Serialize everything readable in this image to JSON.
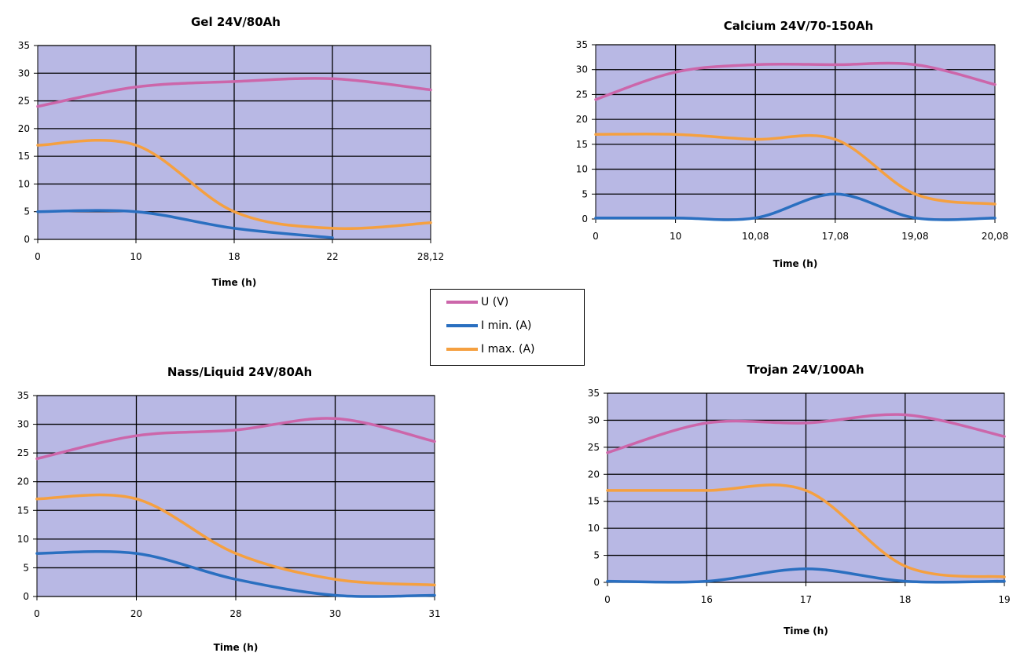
{
  "colors": {
    "u": "#cc66aa",
    "imin": "#2a6fc0",
    "imax": "#f5a040",
    "plot_bg": "#b8b8e4"
  },
  "legend": [
    {
      "key": "u",
      "label": "U (V)"
    },
    {
      "key": "imin",
      "label": "I min. (A)"
    },
    {
      "key": "imax",
      "label": "I max. (A)"
    }
  ],
  "chart_data": [
    {
      "type": "line",
      "title": "Gel 24V/80Ah",
      "xlabel": "Time (h)",
      "categories": [
        "0",
        "10",
        "18",
        "22",
        "28,12"
      ],
      "ylim": [
        0,
        35
      ],
      "yticks": [
        0,
        5,
        10,
        15,
        20,
        25,
        30,
        35
      ],
      "grid": true,
      "series": [
        {
          "key": "u",
          "name": "U (V)",
          "values": [
            24,
            27.5,
            28.5,
            29,
            27
          ]
        },
        {
          "key": "imin",
          "name": "I min. (A)",
          "values": [
            5,
            5,
            2,
            0.3,
            null
          ]
        },
        {
          "key": "imax",
          "name": "I max. (A)",
          "values": [
            17,
            17,
            5,
            2,
            3
          ]
        }
      ]
    },
    {
      "type": "line",
      "title": "Calcium 24V/70-150Ah",
      "xlabel": "Time (h)",
      "categories": [
        "0",
        "10",
        "10,08",
        "17,08",
        "19,08",
        "20,08"
      ],
      "ylim": [
        0,
        35
      ],
      "yticks": [
        0,
        5,
        10,
        15,
        20,
        25,
        30,
        35
      ],
      "grid": true,
      "series": [
        {
          "key": "u",
          "name": "U (V)",
          "values": [
            24,
            29.5,
            31,
            31,
            31,
            27
          ]
        },
        {
          "key": "imin",
          "name": "I min. (A)",
          "values": [
            0.2,
            0.2,
            0.2,
            5,
            0.2,
            0.2
          ]
        },
        {
          "key": "imax",
          "name": "I max. (A)",
          "values": [
            17,
            17,
            16,
            16,
            5,
            3
          ]
        }
      ]
    },
    {
      "type": "line",
      "title": "Nass/Liquid 24V/80Ah",
      "xlabel": "Time (h)",
      "categories": [
        "0",
        "20",
        "28",
        "30",
        "31"
      ],
      "ylim": [
        0,
        35
      ],
      "yticks": [
        0,
        5,
        10,
        15,
        20,
        25,
        30,
        35
      ],
      "grid": true,
      "series": [
        {
          "key": "u",
          "name": "U (V)",
          "values": [
            24,
            28,
            29,
            31,
            27
          ]
        },
        {
          "key": "imin",
          "name": "I min. (A)",
          "values": [
            7.5,
            7.5,
            3,
            0.2,
            0.2
          ]
        },
        {
          "key": "imax",
          "name": "I max. (A)",
          "values": [
            17,
            17,
            7.5,
            3,
            2
          ]
        }
      ]
    },
    {
      "type": "line",
      "title": "Trojan 24V/100Ah",
      "xlabel": "Time (h)",
      "categories": [
        "0",
        "16",
        "17",
        "18",
        "19"
      ],
      "ylim": [
        0,
        35
      ],
      "yticks": [
        0,
        5,
        10,
        15,
        20,
        25,
        30,
        35
      ],
      "grid": true,
      "series": [
        {
          "key": "u",
          "name": "U (V)",
          "values": [
            24,
            29.5,
            29.5,
            31,
            27
          ]
        },
        {
          "key": "imin",
          "name": "I min. (A)",
          "values": [
            0.2,
            0.2,
            2.5,
            0.2,
            0.2
          ]
        },
        {
          "key": "imax",
          "name": "I max. (A)",
          "values": [
            17,
            17,
            17,
            3,
            1
          ]
        }
      ]
    }
  ]
}
